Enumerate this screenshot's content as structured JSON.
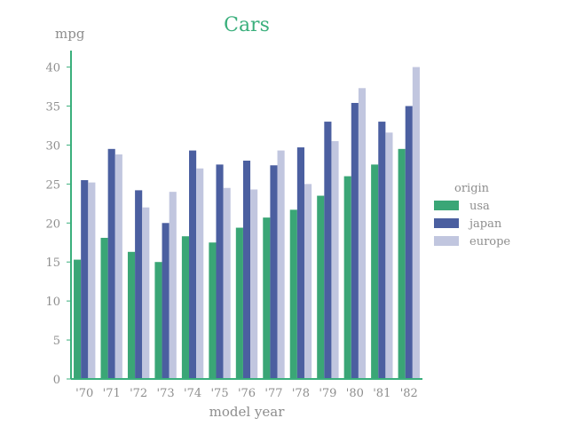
{
  "chart_data": {
    "type": "bar",
    "title": "Cars",
    "xlabel": "model year",
    "ylabel": "mpg",
    "ylim": [
      0,
      42
    ],
    "yticks": [
      0,
      5,
      10,
      15,
      20,
      25,
      30,
      35,
      40
    ],
    "categories": [
      "'70",
      "'71",
      "'72",
      "'73",
      "'74",
      "'75",
      "'76",
      "'77",
      "'78",
      "'79",
      "'80",
      "'81",
      "'82"
    ],
    "legend": {
      "title": "origin",
      "position": "right"
    },
    "grid": false,
    "series": [
      {
        "name": "usa",
        "color": "#3aa676",
        "values": [
          15.3,
          18.1,
          16.3,
          15.0,
          18.3,
          17.5,
          19.4,
          20.7,
          21.7,
          23.5,
          26.0,
          27.5,
          29.5
        ]
      },
      {
        "name": "japan",
        "color": "#4b5fa0",
        "values": [
          25.5,
          29.5,
          24.2,
          20.0,
          29.3,
          27.5,
          28.0,
          27.4,
          29.7,
          33.0,
          35.4,
          33.0,
          35.0
        ]
      },
      {
        "name": "europe",
        "color": "#c1c6df",
        "values": [
          25.2,
          28.8,
          22.0,
          24.0,
          27.0,
          24.5,
          24.3,
          29.3,
          25.0,
          30.5,
          37.3,
          31.6,
          40.0
        ]
      }
    ],
    "axis_color": "#3aaf7c",
    "tick_color": "#8e8e8e"
  }
}
